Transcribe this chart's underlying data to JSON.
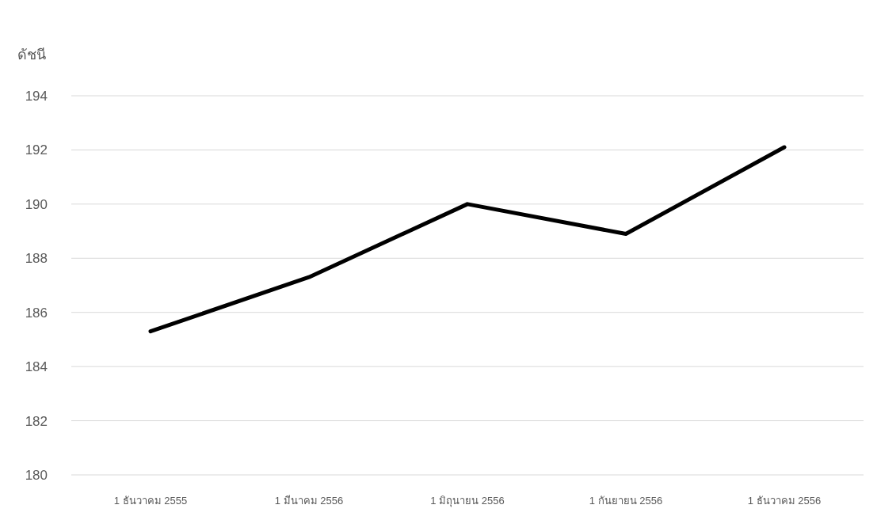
{
  "chart_data": {
    "type": "line",
    "ylabel": "ดัชนี",
    "categories": [
      "1 ธันวาคม 2555",
      "1 มีนาคม 2556",
      "1 มิถุนายน 2556",
      "1 กันยายน 2556",
      "1 ธันวาคม 2556"
    ],
    "series": [
      {
        "color": "#000000",
        "values": [
          185.3,
          187.3,
          190.0,
          188.9,
          192.1
        ]
      }
    ],
    "ylim": [
      180,
      194
    ],
    "yticks": [
      180,
      182,
      184,
      186,
      188,
      190,
      192,
      194
    ],
    "grid": "y",
    "marker": "none",
    "line_style": "solid"
  }
}
